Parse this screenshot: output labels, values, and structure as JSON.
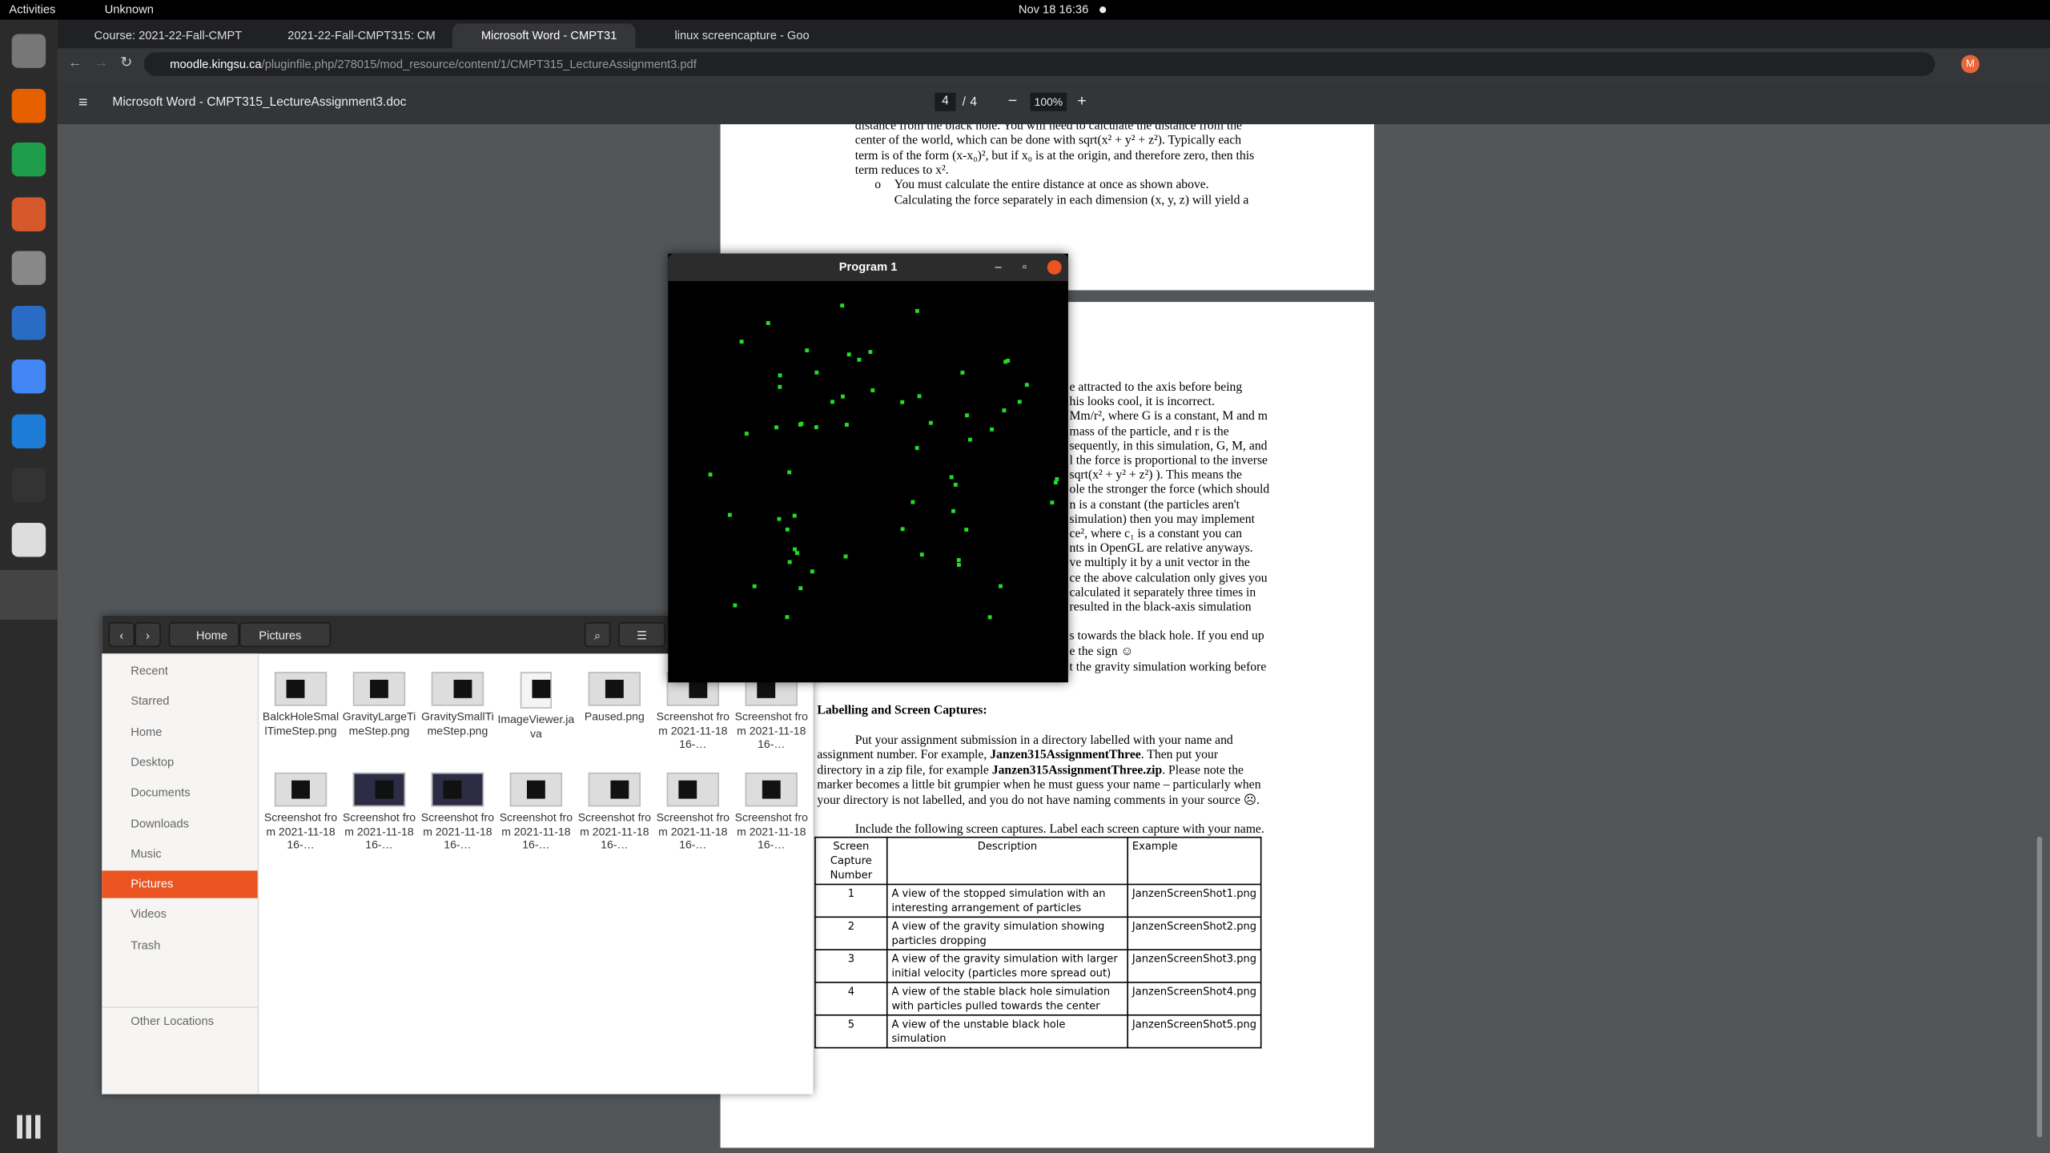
{
  "top_bar": {
    "activities": "Activities",
    "app_menu": "Unknown",
    "clock": "Nov 18  16:36"
  },
  "browser": {
    "tabs": [
      "Course: 2021-22-Fall-CMPT",
      "2021-22-Fall-CMPT315: CM",
      "Microsoft Word - CMPT31",
      "linux screencapture - Goo"
    ],
    "url_host": "moodle.kingsu.ca",
    "url_path": "/pluginfile.php/278015/mod_resource/content/1/CMPT315_LectureAssignment3.pdf",
    "profile": "M"
  },
  "pdf_viewer": {
    "title": "Microsoft Word - CMPT315_LectureAssignment3.doc",
    "page_current": 4,
    "page_separator": "/",
    "page_total": 4,
    "zoom": "100%"
  },
  "document": {
    "page1_lines": [
      "distance from the black hole.  You will need to calculate the distance from the",
      "center of the world, which can be done with sqrt(x² + y² + z²).  Typically each",
      "term is of the form (x-x₀)², but if x₀ is at the origin, and therefore zero, then this",
      "term reduces to x²."
    ],
    "page1_bullet": [
      "You must calculate the entire distance at once as shown above.",
      "Calculating the force separately in each dimension (x, y, z) will yield a"
    ],
    "page2_fragments": [
      "e attracted to the axis before being",
      "his looks cool, it is incorrect.",
      "Mm/r², where G is a constant, M and m",
      "mass of the particle, and r is the",
      "sequently, in this simulation, G, M, and",
      "l the force is proportional to the inverse",
      "sqrt(x² + y² + z²) ).  This means the",
      "ole the stronger the force (which should",
      "n is a constant (the particles aren't",
      "simulation) then you may implement",
      "ce², where c₁ is a constant you can",
      "nts in OpenGL are relative anyways.",
      "ve multiply it by a unit vector in the",
      "ce the above calculation only gives you",
      "calculated it separately three times in",
      "resulted in the black-axis simulation"
    ],
    "page2_fragments_b": [
      "s towards the black hole.  If you end up",
      "e the sign ☺",
      "t the gravity simulation working before"
    ],
    "section_heading": "Labelling and Screen Captures:",
    "paragraph": [
      [
        "Put your assignment submission in a directory labelled with your name and"
      ],
      [
        "assignment number.  For example, ",
        {
          "text": "Janzen315AssignmentThree",
          "bold": true
        },
        ".  Then put your"
      ],
      [
        "directory in a zip file, for example ",
        {
          "text": "Janzen315AssignmentThree.zip",
          "bold": true
        },
        ".  Please note the"
      ],
      [
        "marker becomes a little bit grumpier when he must guess your name – particularly when"
      ],
      [
        "your directory is not labelled, and you do not have naming comments in your source ☹."
      ]
    ],
    "include_line": "Include the following screen captures.  Label each screen capture with your name.",
    "table": {
      "header": [
        "Screen Capture Number",
        "Description",
        "Example"
      ],
      "rows": [
        [
          1,
          "A view of the stopped simulation with an interesting arrangement of particles",
          "JanzenScreenShot1.png"
        ],
        [
          2,
          "A view of the gravity simulation showing particles dropping",
          "JanzenScreenShot2.png"
        ],
        [
          3,
          "A view of the gravity simulation with larger initial velocity (particles more spread out)",
          "JanzenScreenShot3.png"
        ],
        [
          4,
          "A view of the stable black hole simulation with particles pulled towards the center",
          "JanzenScreenShot4.png"
        ],
        [
          5,
          "A view of the unstable black hole simulation",
          "JanzenScreenShot5.png"
        ]
      ]
    }
  },
  "program_window": {
    "title": "Program 1"
  },
  "file_manager": {
    "path": [
      "Home",
      "Pictures"
    ],
    "sidebar": [
      "Recent",
      "Starred",
      "Home",
      "Desktop",
      "Documents",
      "Downloads",
      "Music",
      "Pictures",
      "Videos",
      "Trash"
    ],
    "active": "Pictures",
    "other": "Other Locations",
    "files": [
      "BalckHoleSmallTimeStep.png",
      "GravityLargeTimeStep.png",
      "GravitySmallTimeStep.png",
      "ImageViewer.java",
      "Paused.png",
      "Screenshot from 2021-11-18 16-…",
      "Screenshot from 2021-11-18 16-…",
      "Screenshot from 2021-11-18 16-…",
      "Screenshot from 2021-11-18 16-…",
      "Screenshot from 2021-11-18 16-…",
      "Screenshot from 2021-11-18 16-…",
      "Screenshot from 2021-11-18 16-…",
      "Screenshot from 2021-11-18 16-…",
      "Screenshot from 2021-11-18 16-…"
    ]
  }
}
